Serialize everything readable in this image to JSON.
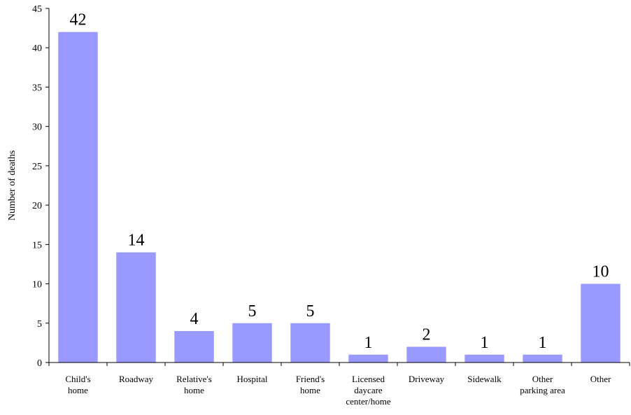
{
  "chart_data": {
    "type": "bar",
    "categories": [
      [
        "Child's",
        "home"
      ],
      [
        "Roadway"
      ],
      [
        "Relative's",
        "home"
      ],
      [
        "Hospital"
      ],
      [
        "Friend's",
        "home"
      ],
      [
        "Licensed",
        "daycare",
        "center/home"
      ],
      [
        "Driveway"
      ],
      [
        "Sidewalk"
      ],
      [
        "Other",
        "parking area"
      ],
      [
        "Other"
      ]
    ],
    "values": [
      42,
      14,
      4,
      5,
      5,
      1,
      2,
      1,
      1,
      10
    ],
    "data_labels": [
      "42",
      "14",
      "4",
      "5",
      "5",
      "1",
      "2",
      "1",
      "1",
      "10"
    ],
    "title": "",
    "xlabel": "",
    "ylabel": "Number of deaths",
    "ylim": [
      0,
      45
    ],
    "yticks": [
      0,
      5,
      10,
      15,
      20,
      25,
      30,
      35,
      40,
      45
    ],
    "grid": false,
    "legend": false,
    "bar_color": "#9999ff",
    "axis_color": "#000000"
  }
}
